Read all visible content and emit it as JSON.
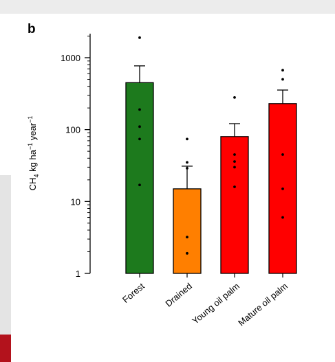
{
  "panel_label": "b",
  "chart_data": {
    "type": "bar",
    "yscale": "log",
    "ylim": [
      1,
      2000
    ],
    "ylabel_parts": {
      "main": "CH",
      "sub": "4",
      "unit_a": " kg ha",
      "sup_a": "−1",
      "unit_b": " year",
      "sup_b": "−1"
    },
    "ytick_values": [
      1,
      10,
      100,
      1000
    ],
    "ytick_labels": [
      "1",
      "10",
      "100",
      "1000"
    ],
    "categories": [
      "Forest",
      "Drained",
      "Young oil palm",
      "Mature oil palm"
    ],
    "values": [
      450,
      15,
      80,
      230
    ],
    "error_upper": [
      770,
      31,
      121,
      355
    ],
    "colors": [
      "#1d7a1d",
      "#ff7f00",
      "#ff0000",
      "#ff0000"
    ],
    "points": [
      [
        1900,
        190,
        110,
        74,
        17
      ],
      [
        74,
        35,
        29,
        3.2,
        1.9
      ],
      [
        280,
        45,
        36,
        30,
        16
      ],
      [
        670,
        500,
        45,
        15,
        6
      ]
    ]
  }
}
